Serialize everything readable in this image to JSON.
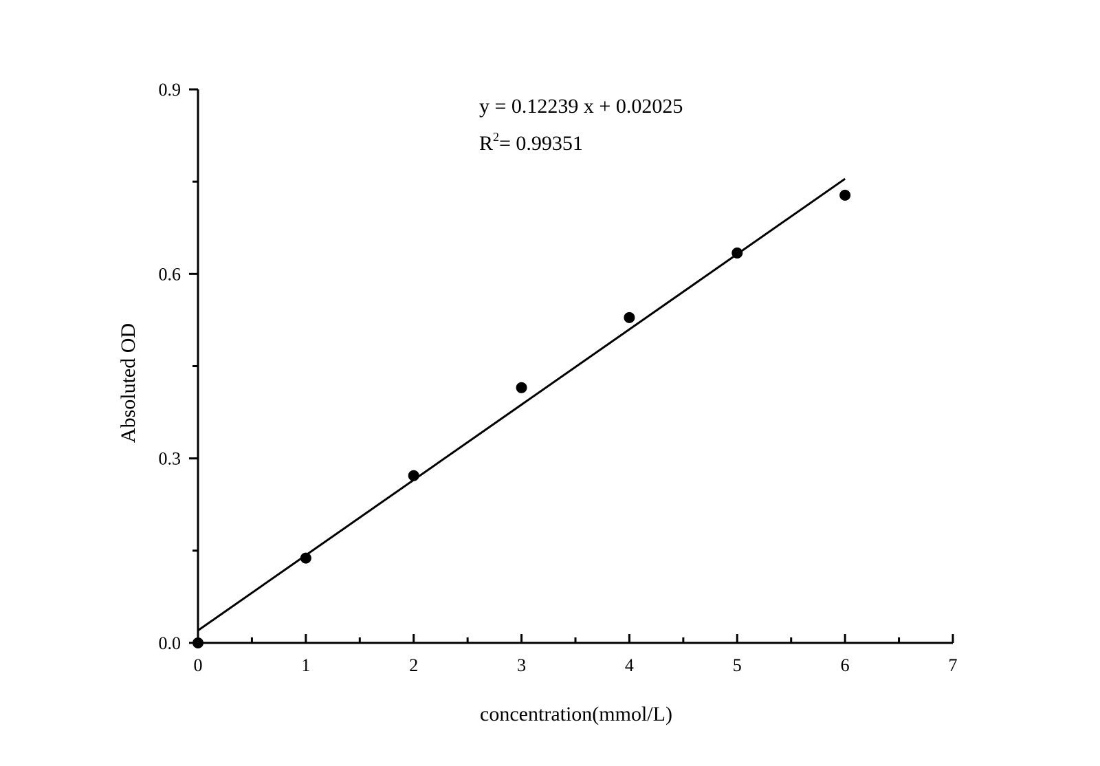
{
  "chart_data": {
    "type": "scatter",
    "xlabel": "concentration(mmol/L)",
    "ylabel": "Absoluted OD",
    "xlim": [
      0,
      7
    ],
    "ylim": [
      0,
      0.9
    ],
    "x_ticks": [
      0,
      1,
      2,
      3,
      4,
      5,
      6,
      7
    ],
    "x_tick_labels": [
      "0",
      "1",
      "2",
      "3",
      "4",
      "5",
      "6",
      "7"
    ],
    "x_minor_step": 0.5,
    "y_ticks": [
      0,
      0.3,
      0.6,
      0.9
    ],
    "y_tick_labels": [
      "0.0",
      "0.3",
      "0.6",
      "0.9"
    ],
    "y_minor_step": 0.15,
    "grid": false,
    "legend": "none",
    "series": [
      {
        "x": [
          0,
          1,
          2,
          3,
          4,
          5,
          6
        ],
        "y": [
          0.0,
          0.138,
          0.272,
          0.415,
          0.529,
          0.634,
          0.728
        ],
        "marker": "filled-circle",
        "color": "#000000"
      }
    ],
    "fit_line": {
      "slope": 0.12239,
      "intercept": 0.02025,
      "x_range": [
        0,
        6
      ],
      "color": "#000000"
    },
    "annotations": {
      "equation": "y = 0.12239 x + 0.02025",
      "r2_prefix": "R",
      "r2_exponent": "2",
      "r2_value": "= 0.99351"
    }
  }
}
